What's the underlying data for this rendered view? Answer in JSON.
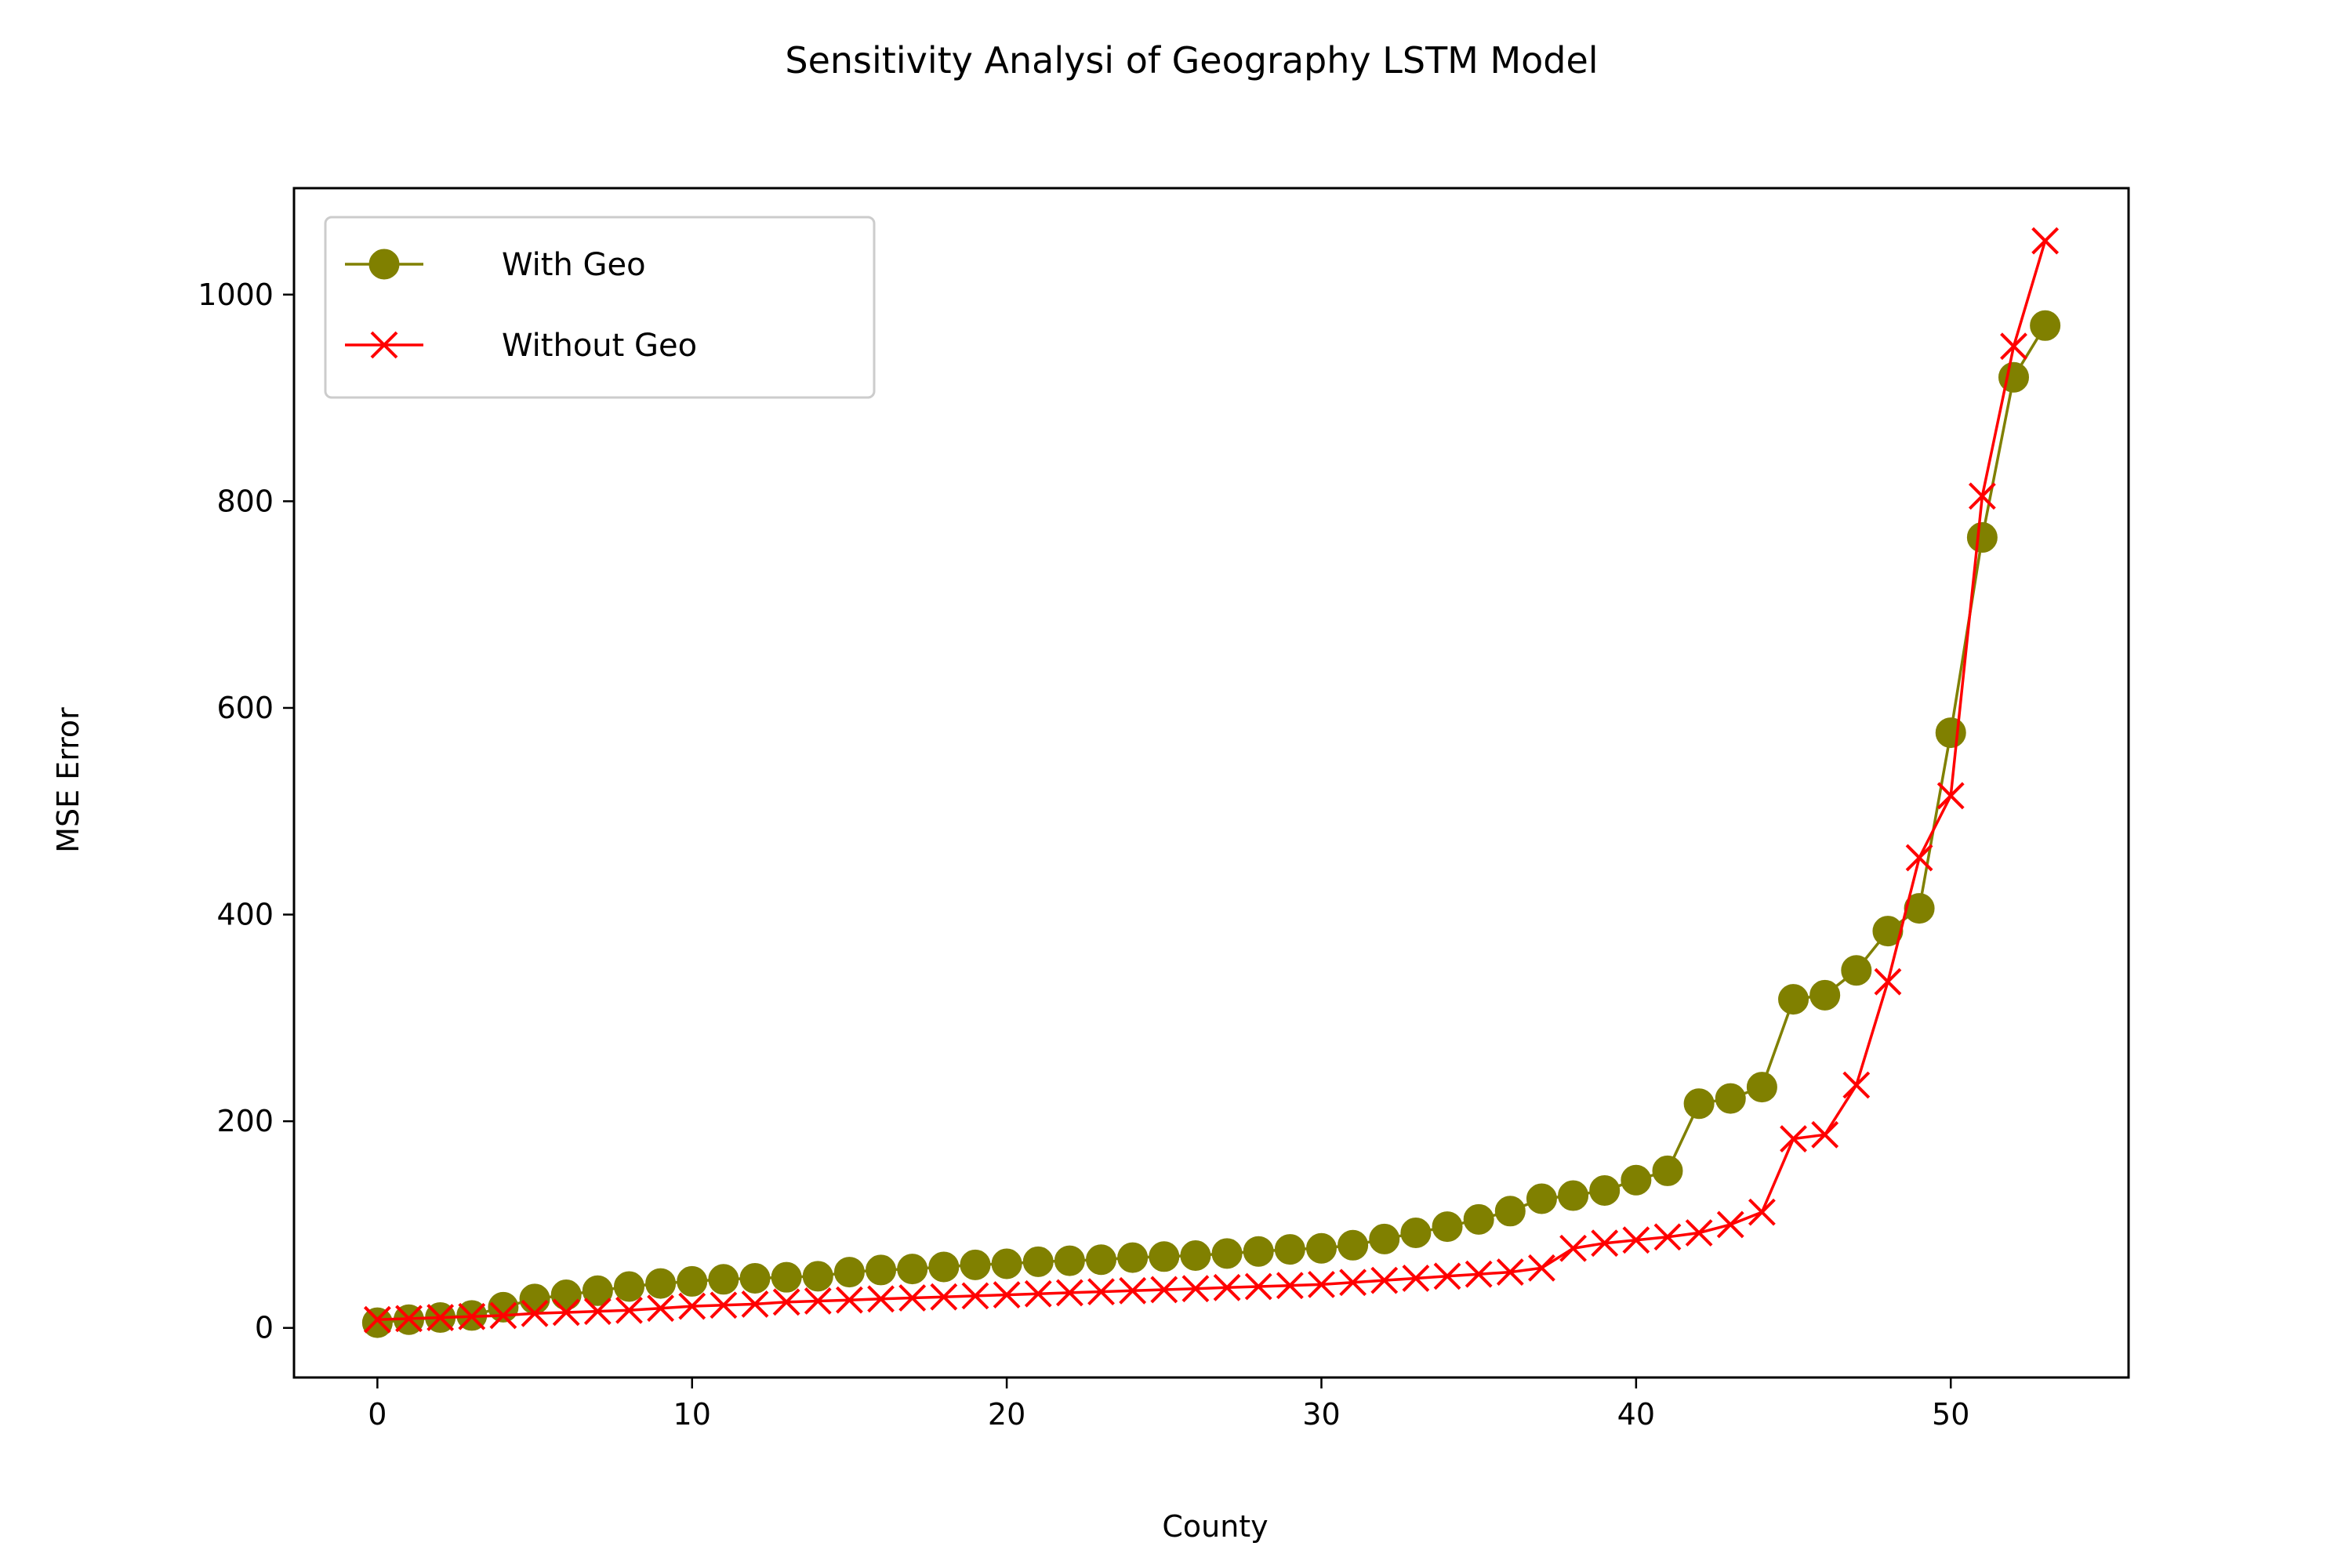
{
  "chart_data": {
    "type": "line",
    "title": "Sensitivity Analysi of Geography LSTM Model",
    "xlabel": "County",
    "ylabel": "MSE Error",
    "xlim": [
      -2.65,
      55.65
    ],
    "ylim": [
      -48,
      1103
    ],
    "xticks": [
      0,
      10,
      20,
      30,
      40,
      50
    ],
    "yticks": [
      0,
      200,
      400,
      600,
      800,
      1000
    ],
    "grid": false,
    "legend": "top-left",
    "series": [
      {
        "name": "With Geo",
        "color": "#808000",
        "marker": "circle",
        "x": [
          0,
          1,
          2,
          3,
          4,
          5,
          6,
          7,
          8,
          9,
          10,
          11,
          12,
          13,
          14,
          15,
          16,
          17,
          18,
          19,
          20,
          21,
          22,
          23,
          24,
          25,
          26,
          27,
          28,
          29,
          30,
          31,
          32,
          33,
          34,
          35,
          36,
          37,
          38,
          39,
          40,
          41,
          42,
          43,
          44,
          45,
          46,
          47,
          48,
          49,
          50,
          51,
          52,
          53
        ],
        "values": [
          5,
          8,
          10,
          12,
          20,
          28,
          32,
          36,
          40,
          43,
          45,
          47,
          48,
          49,
          50,
          54,
          56,
          57,
          59,
          61,
          62,
          64,
          65,
          66,
          68,
          69,
          70,
          72,
          74,
          76,
          77,
          80,
          86,
          92,
          98,
          105,
          113,
          125,
          128,
          133,
          143,
          152,
          217,
          222,
          233,
          318,
          322,
          346,
          384,
          406,
          576,
          765,
          920,
          970
        ]
      },
      {
        "name": "Without Geo",
        "color": "#ff0000",
        "marker": "x",
        "x": [
          0,
          1,
          2,
          3,
          4,
          5,
          6,
          7,
          8,
          9,
          10,
          11,
          12,
          13,
          14,
          15,
          16,
          17,
          18,
          19,
          20,
          21,
          22,
          23,
          24,
          25,
          26,
          27,
          28,
          29,
          30,
          31,
          32,
          33,
          34,
          35,
          36,
          37,
          38,
          39,
          40,
          41,
          42,
          43,
          44,
          45,
          46,
          47,
          48,
          49,
          50,
          51,
          52,
          53
        ],
        "values": [
          8,
          9,
          10,
          11,
          12,
          14,
          15,
          16,
          17,
          19,
          21,
          22,
          23,
          25,
          26,
          27,
          28,
          29,
          30,
          31,
          32,
          33,
          34,
          35,
          36,
          37,
          38,
          39,
          40,
          41,
          42,
          44,
          46,
          48,
          50,
          52,
          54,
          58,
          77,
          82,
          85,
          88,
          92,
          100,
          112,
          183,
          187,
          235,
          335,
          455,
          515,
          805,
          950,
          1052
        ]
      }
    ]
  }
}
